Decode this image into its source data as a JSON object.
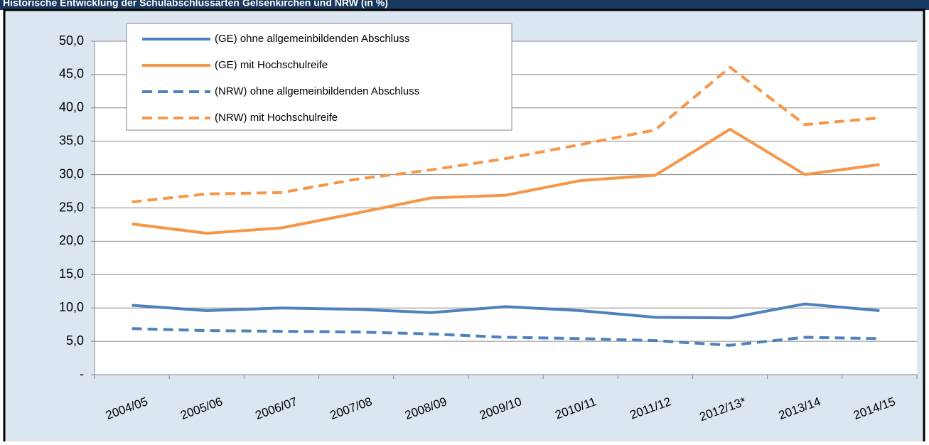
{
  "chart_data": {
    "type": "line",
    "title": "Historische Entwicklung der Schulabschlussarten Gelsenkirchen und NRW (in %)",
    "categories": [
      "2004/05",
      "2005/06",
      "2006/07",
      "2007/08",
      "2008/09",
      "2009/10",
      "2010/11",
      "2011/12",
      "2012/13*",
      "2013/14",
      "2014/15"
    ],
    "series": [
      {
        "name": "(GE) ohne allgemeinbildenden Abschluss",
        "color": "#4f81bd",
        "dashed": false,
        "values": [
          10.4,
          9.6,
          10.0,
          9.8,
          9.3,
          10.2,
          9.6,
          8.6,
          8.5,
          10.6,
          9.6
        ]
      },
      {
        "name": "(GE) mit Hochschulreife",
        "color": "#f79646",
        "dashed": false,
        "values": [
          22.6,
          21.2,
          22.0,
          24.2,
          26.5,
          26.9,
          29.1,
          29.9,
          36.8,
          30.0,
          31.5
        ]
      },
      {
        "name": "(NRW) ohne allgemeinbildenden Abschluss",
        "color": "#4f81bd",
        "dashed": true,
        "values": [
          6.9,
          6.6,
          6.5,
          6.4,
          6.1,
          5.6,
          5.4,
          5.1,
          4.4,
          5.6,
          5.4
        ]
      },
      {
        "name": "(NRW) mit Hochschulreife",
        "color": "#f79646",
        "dashed": true,
        "values": [
          25.9,
          27.1,
          27.3,
          29.3,
          30.7,
          32.4,
          34.5,
          36.7,
          46.1,
          37.5,
          38.5
        ]
      }
    ],
    "ylim": [
      0,
      50
    ],
    "yticks": [
      {
        "value": 0,
        "label": "-"
      },
      {
        "value": 5,
        "label": "5,0"
      },
      {
        "value": 10,
        "label": "10,0"
      },
      {
        "value": 15,
        "label": "15,0"
      },
      {
        "value": 20,
        "label": "20,0"
      },
      {
        "value": 25,
        "label": "25,0"
      },
      {
        "value": 30,
        "label": "30,0"
      },
      {
        "value": 35,
        "label": "35,0"
      },
      {
        "value": 40,
        "label": "40,0"
      },
      {
        "value": 45,
        "label": "45,0"
      },
      {
        "value": 50,
        "label": "50,0"
      }
    ],
    "grid": true,
    "legend": "top-left"
  }
}
